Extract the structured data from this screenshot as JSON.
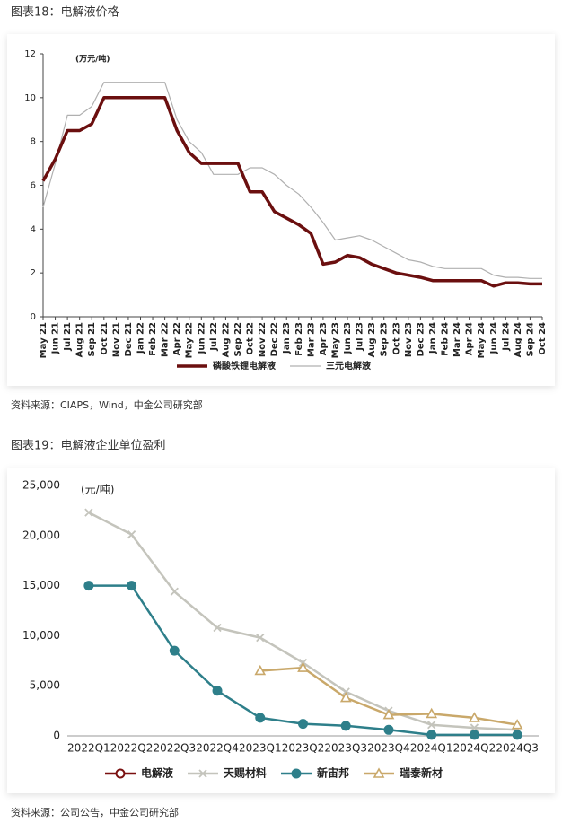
{
  "chart_data": [
    {
      "type": "line",
      "title": "图表18：电解液价格",
      "unit_label": "(万元/吨)",
      "source": "资料来源：CIAPS，Wind，中金公司研究部",
      "categories": [
        "May 21",
        "Jun 21",
        "Jul 21",
        "Aug 21",
        "Sep 21",
        "Oct 21",
        "Nov 21",
        "Dec 21",
        "Jan 22",
        "Feb 22",
        "Mar 22",
        "Apr 22",
        "May 22",
        "Jun 22",
        "Jul 22",
        "Aug 22",
        "Sep 22",
        "Oct 22",
        "Nov 22",
        "Dec 22",
        "Jan 23",
        "Feb 23",
        "Mar 23",
        "Apr 23",
        "May 23",
        "Jun 23",
        "Jul 23",
        "Aug 23",
        "Sep 23",
        "Oct 23",
        "Nov 23",
        "Dec 23",
        "Jan 24",
        "Feb 24",
        "Mar 24",
        "Apr 24",
        "May 24",
        "Jun 24",
        "Jul 24",
        "Aug 24",
        "Sep 24",
        "Oct 24"
      ],
      "series": [
        {
          "name": "磷酸铁锂电解液",
          "color": "#6b0f0f",
          "line_width": 3.5,
          "values": [
            6.2,
            7.2,
            8.5,
            8.5,
            8.8,
            10.0,
            10.0,
            10.0,
            10.0,
            10.0,
            10.0,
            8.5,
            7.5,
            7.0,
            7.0,
            7.0,
            7.0,
            5.7,
            5.7,
            4.8,
            4.5,
            4.2,
            3.8,
            2.4,
            2.5,
            2.8,
            2.7,
            2.4,
            2.2,
            2.0,
            1.9,
            1.8,
            1.65,
            1.65,
            1.65,
            1.65,
            1.65,
            1.4,
            1.55,
            1.55,
            1.5,
            1.5
          ]
        },
        {
          "name": "三元电解液",
          "color": "#b0b0b0",
          "line_width": 1.2,
          "values": [
            5.0,
            7.0,
            9.2,
            9.2,
            9.6,
            10.7,
            10.7,
            10.7,
            10.7,
            10.7,
            10.7,
            9.0,
            8.0,
            7.5,
            6.5,
            6.5,
            6.5,
            6.8,
            6.8,
            6.5,
            6.0,
            5.6,
            5.0,
            4.3,
            3.5,
            3.6,
            3.7,
            3.5,
            3.2,
            2.9,
            2.6,
            2.5,
            2.3,
            2.2,
            2.2,
            2.2,
            2.2,
            1.9,
            1.8,
            1.8,
            1.75,
            1.75
          ]
        }
      ],
      "ylim": [
        0,
        12
      ],
      "yticks": [
        0,
        2,
        4,
        6,
        8,
        10,
        12
      ],
      "grid": false
    },
    {
      "type": "line",
      "title": "图表19：电解液企业单位盈利",
      "unit_label": "(元/吨)",
      "source": "资料来源：公司公告，中金公司研究部",
      "categories": [
        "2022Q1",
        "2022Q2",
        "2022Q3",
        "2022Q4",
        "2023Q1",
        "2023Q2",
        "2023Q3",
        "2023Q4",
        "2024Q1",
        "2024Q2",
        "2024Q3"
      ],
      "series": [
        {
          "name": "电解液",
          "color": "#7a1010",
          "marker": "circle-open",
          "line_width": 2.5,
          "values": [
            null,
            null,
            null,
            null,
            null,
            null,
            null,
            null,
            null,
            null,
            null
          ]
        },
        {
          "name": "天赐材料",
          "color": "#c4c4bc",
          "marker": "x",
          "line_width": 2.5,
          "values": [
            22300,
            20100,
            14400,
            10800,
            9800,
            7300,
            4400,
            2500,
            1100,
            800,
            600
          ]
        },
        {
          "name": "新宙邦",
          "color": "#2e7f8a",
          "marker": "circle",
          "line_width": 2.5,
          "values": [
            15000,
            15000,
            8500,
            4500,
            1800,
            1200,
            1000,
            600,
            100,
            100,
            100
          ]
        },
        {
          "name": "瑞泰新材",
          "color": "#c9a86a",
          "marker": "triangle-open",
          "line_width": 2.5,
          "values": [
            null,
            null,
            null,
            null,
            6500,
            6800,
            3800,
            2100,
            2200,
            1800,
            1100
          ]
        }
      ],
      "ylim": [
        0,
        25000
      ],
      "yticks": [
        0,
        {
          "value": 5000,
          "label": "5,000"
        },
        {
          "value": 10000,
          "label": "10,000"
        },
        {
          "value": 15000,
          "label": "15,000"
        },
        {
          "value": 20000,
          "label": "20,000"
        },
        {
          "value": 25000,
          "label": "25,000"
        }
      ],
      "grid": false
    }
  ]
}
